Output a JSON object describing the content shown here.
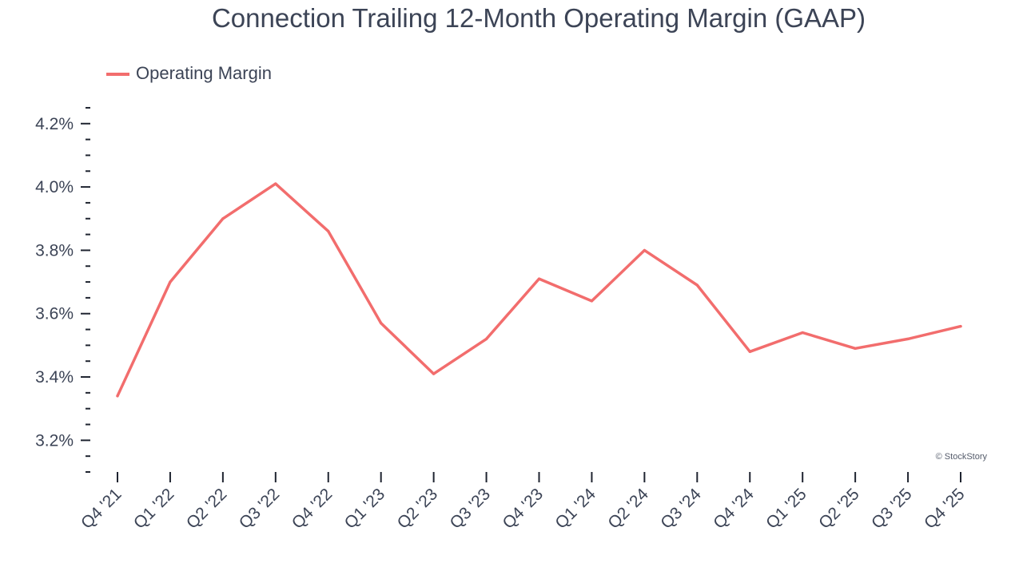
{
  "chart_data": {
    "type": "line",
    "title": "Connection Trailing 12-Month Operating Margin (GAAP)",
    "xlabel": "",
    "ylabel": "",
    "categories": [
      "Q4 '21",
      "Q1 '22",
      "Q2 '22",
      "Q3 '22",
      "Q4 '22",
      "Q1 '23",
      "Q2 '23",
      "Q3 '23",
      "Q4 '23",
      "Q1 '24",
      "Q2 '24",
      "Q3 '24",
      "Q4 '24",
      "Q1 '25",
      "Q2 '25",
      "Q3 '25",
      "Q4 '25"
    ],
    "series": [
      {
        "name": "Operating Margin",
        "color": "#f26d6d",
        "values": [
          3.34,
          3.7,
          3.9,
          4.01,
          3.86,
          3.57,
          3.41,
          3.52,
          3.71,
          3.64,
          3.8,
          3.69,
          3.48,
          3.54,
          3.49,
          3.52,
          3.56
        ]
      }
    ],
    "ylim": [
      3.1,
      4.26
    ],
    "y_ticks": [
      3.2,
      3.4,
      3.6,
      3.8,
      4.0,
      4.2
    ],
    "y_tick_labels": [
      "3.2%",
      "3.4%",
      "3.6%",
      "3.8%",
      "4.0%",
      "4.2%"
    ],
    "y_minor_step": 0.05,
    "grid": false,
    "legend_position": "top-left"
  },
  "credit": "© StockStory"
}
